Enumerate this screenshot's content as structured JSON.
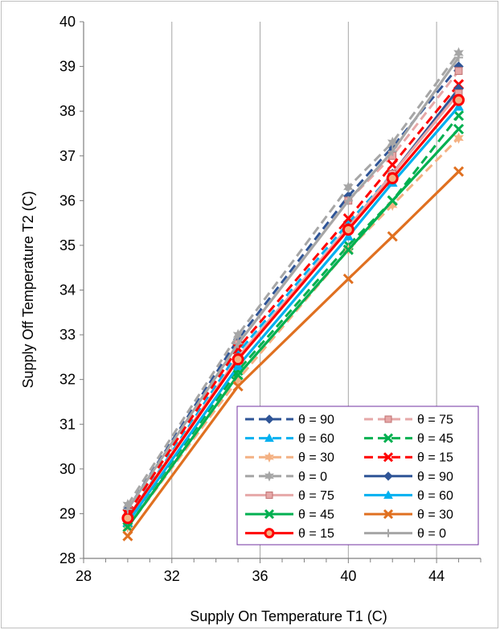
{
  "chart_data": {
    "type": "line",
    "title": "",
    "xlabel": "Supply On Temperature T1 (C)",
    "ylabel": "Supply Off Temperature T2 (C)",
    "xlim": [
      28,
      46
    ],
    "ylim": [
      28,
      40
    ],
    "x_ticks": [
      28,
      32,
      36,
      40,
      44
    ],
    "y_ticks": [
      28,
      29,
      30,
      31,
      32,
      33,
      34,
      35,
      36,
      37,
      38,
      39,
      40
    ],
    "grid": "vertical",
    "legend_position": "bottom-right",
    "x": [
      30,
      35,
      40,
      42,
      45
    ],
    "series": [
      {
        "name": "θ = 90",
        "color": "#2f5597",
        "dashed": true,
        "marker": "diamond",
        "values": [
          29.1,
          32.9,
          36.1,
          37.2,
          39.0
        ]
      },
      {
        "name": "θ = 75",
        "color": "#e6a8a8",
        "dashed": true,
        "marker": "square",
        "values": [
          29.0,
          32.8,
          36.0,
          37.0,
          38.9
        ]
      },
      {
        "name": "θ = 60",
        "color": "#00b0f0",
        "dashed": true,
        "marker": "triangle",
        "values": [
          28.9,
          32.6,
          35.5,
          36.6,
          38.4
        ]
      },
      {
        "name": "θ = 45",
        "color": "#00b050",
        "dashed": true,
        "marker": "x",
        "values": [
          28.8,
          32.2,
          35.0,
          36.0,
          37.9
        ]
      },
      {
        "name": "θ = 30",
        "color": "#f4b183",
        "dashed": true,
        "marker": "star",
        "values": [
          28.7,
          32.0,
          34.9,
          35.9,
          37.4
        ]
      },
      {
        "name": "θ = 15",
        "color": "#ff0000",
        "dashed": true,
        "marker": "x",
        "values": [
          29.0,
          32.7,
          35.6,
          36.8,
          38.6
        ]
      },
      {
        "name": "θ = 0",
        "color": "#a6a6a6",
        "dashed": true,
        "marker": "star",
        "values": [
          29.2,
          33.0,
          36.3,
          37.3,
          39.3
        ]
      },
      {
        "name": "θ = 90",
        "color": "#2f5597",
        "dashed": false,
        "marker": "diamond",
        "values": [
          28.9,
          32.5,
          35.4,
          36.6,
          38.5
        ]
      },
      {
        "name": "θ = 75",
        "color": "#e6a8a8",
        "dashed": false,
        "marker": "square",
        "values": [
          28.9,
          32.5,
          35.4,
          36.6,
          38.4
        ]
      },
      {
        "name": "θ = 60",
        "color": "#00b0f0",
        "dashed": false,
        "marker": "triangle",
        "values": [
          28.8,
          32.3,
          35.2,
          36.4,
          38.1
        ]
      },
      {
        "name": "θ = 45",
        "color": "#00b050",
        "dashed": false,
        "marker": "x",
        "values": [
          28.7,
          32.1,
          34.9,
          36.0,
          37.6
        ]
      },
      {
        "name": "θ = 30",
        "color": "#e07020",
        "dashed": false,
        "marker": "x",
        "values": [
          28.5,
          31.85,
          34.25,
          35.2,
          36.65
        ]
      },
      {
        "name": "θ = 15",
        "color": "#ff0000",
        "dashed": false,
        "marker": "circle",
        "values": [
          28.9,
          32.45,
          35.35,
          36.5,
          38.25
        ]
      },
      {
        "name": "θ = 0",
        "color": "#a6a6a6",
        "dashed": false,
        "marker": "plus",
        "values": [
          29.1,
          32.8,
          36.0,
          37.1,
          39.2
        ]
      }
    ]
  }
}
